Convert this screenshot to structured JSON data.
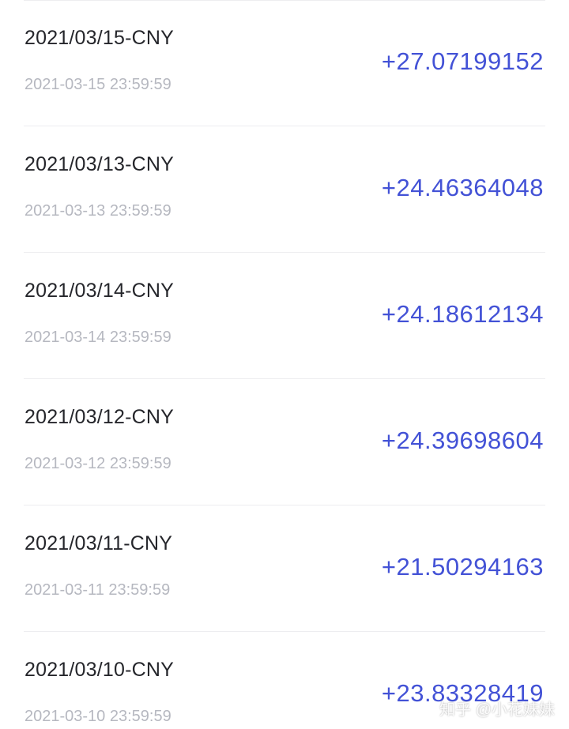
{
  "transactions": [
    {
      "title": "2021/03/15-CNY",
      "time": "2021-03-15 23:59:59",
      "amount": "+27.07199152"
    },
    {
      "title": "2021/03/13-CNY",
      "time": "2021-03-13 23:59:59",
      "amount": "+24.46364048"
    },
    {
      "title": "2021/03/14-CNY",
      "time": "2021-03-14 23:59:59",
      "amount": "+24.18612134"
    },
    {
      "title": "2021/03/12-CNY",
      "time": "2021-03-12 23:59:59",
      "amount": "+24.39698604"
    },
    {
      "title": "2021/03/11-CNY",
      "time": "2021-03-11 23:59:59",
      "amount": "+21.50294163"
    },
    {
      "title": "2021/03/10-CNY",
      "time": "2021-03-10 23:59:59",
      "amount": "+23.83328419"
    }
  ],
  "watermark": "知乎 @小花妹妹",
  "colors": {
    "amount": "#4352d6",
    "title": "#25262b",
    "time": "#b6b8c0",
    "divider": "#ededf0"
  }
}
